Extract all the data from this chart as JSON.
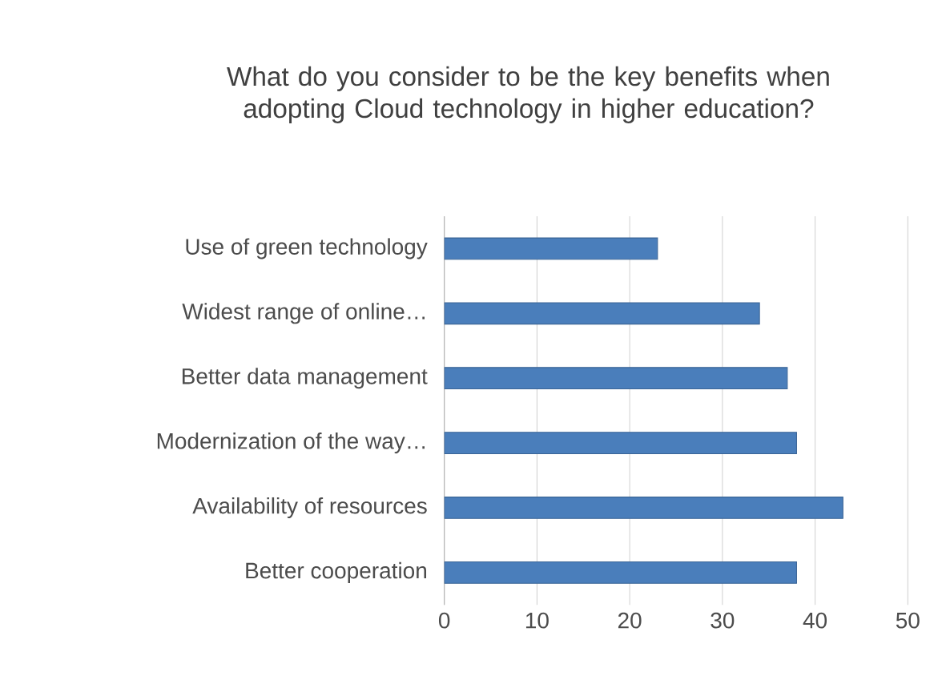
{
  "chart_data": {
    "type": "bar",
    "orientation": "horizontal",
    "title": "What do you consider to be the key benefits when adopting Cloud technology in higher education?",
    "categories": [
      "Use of green technology",
      "Widest range of online…",
      "Better data management",
      "Modernization of the way…",
      "Availability of resources",
      "Better cooperation"
    ],
    "values": [
      23,
      34,
      37,
      38,
      43,
      38
    ],
    "color": "#4a7ebb",
    "xlim": [
      0,
      50
    ],
    "xticks": [
      0,
      10,
      20,
      30,
      40,
      50
    ],
    "grid": "x"
  }
}
